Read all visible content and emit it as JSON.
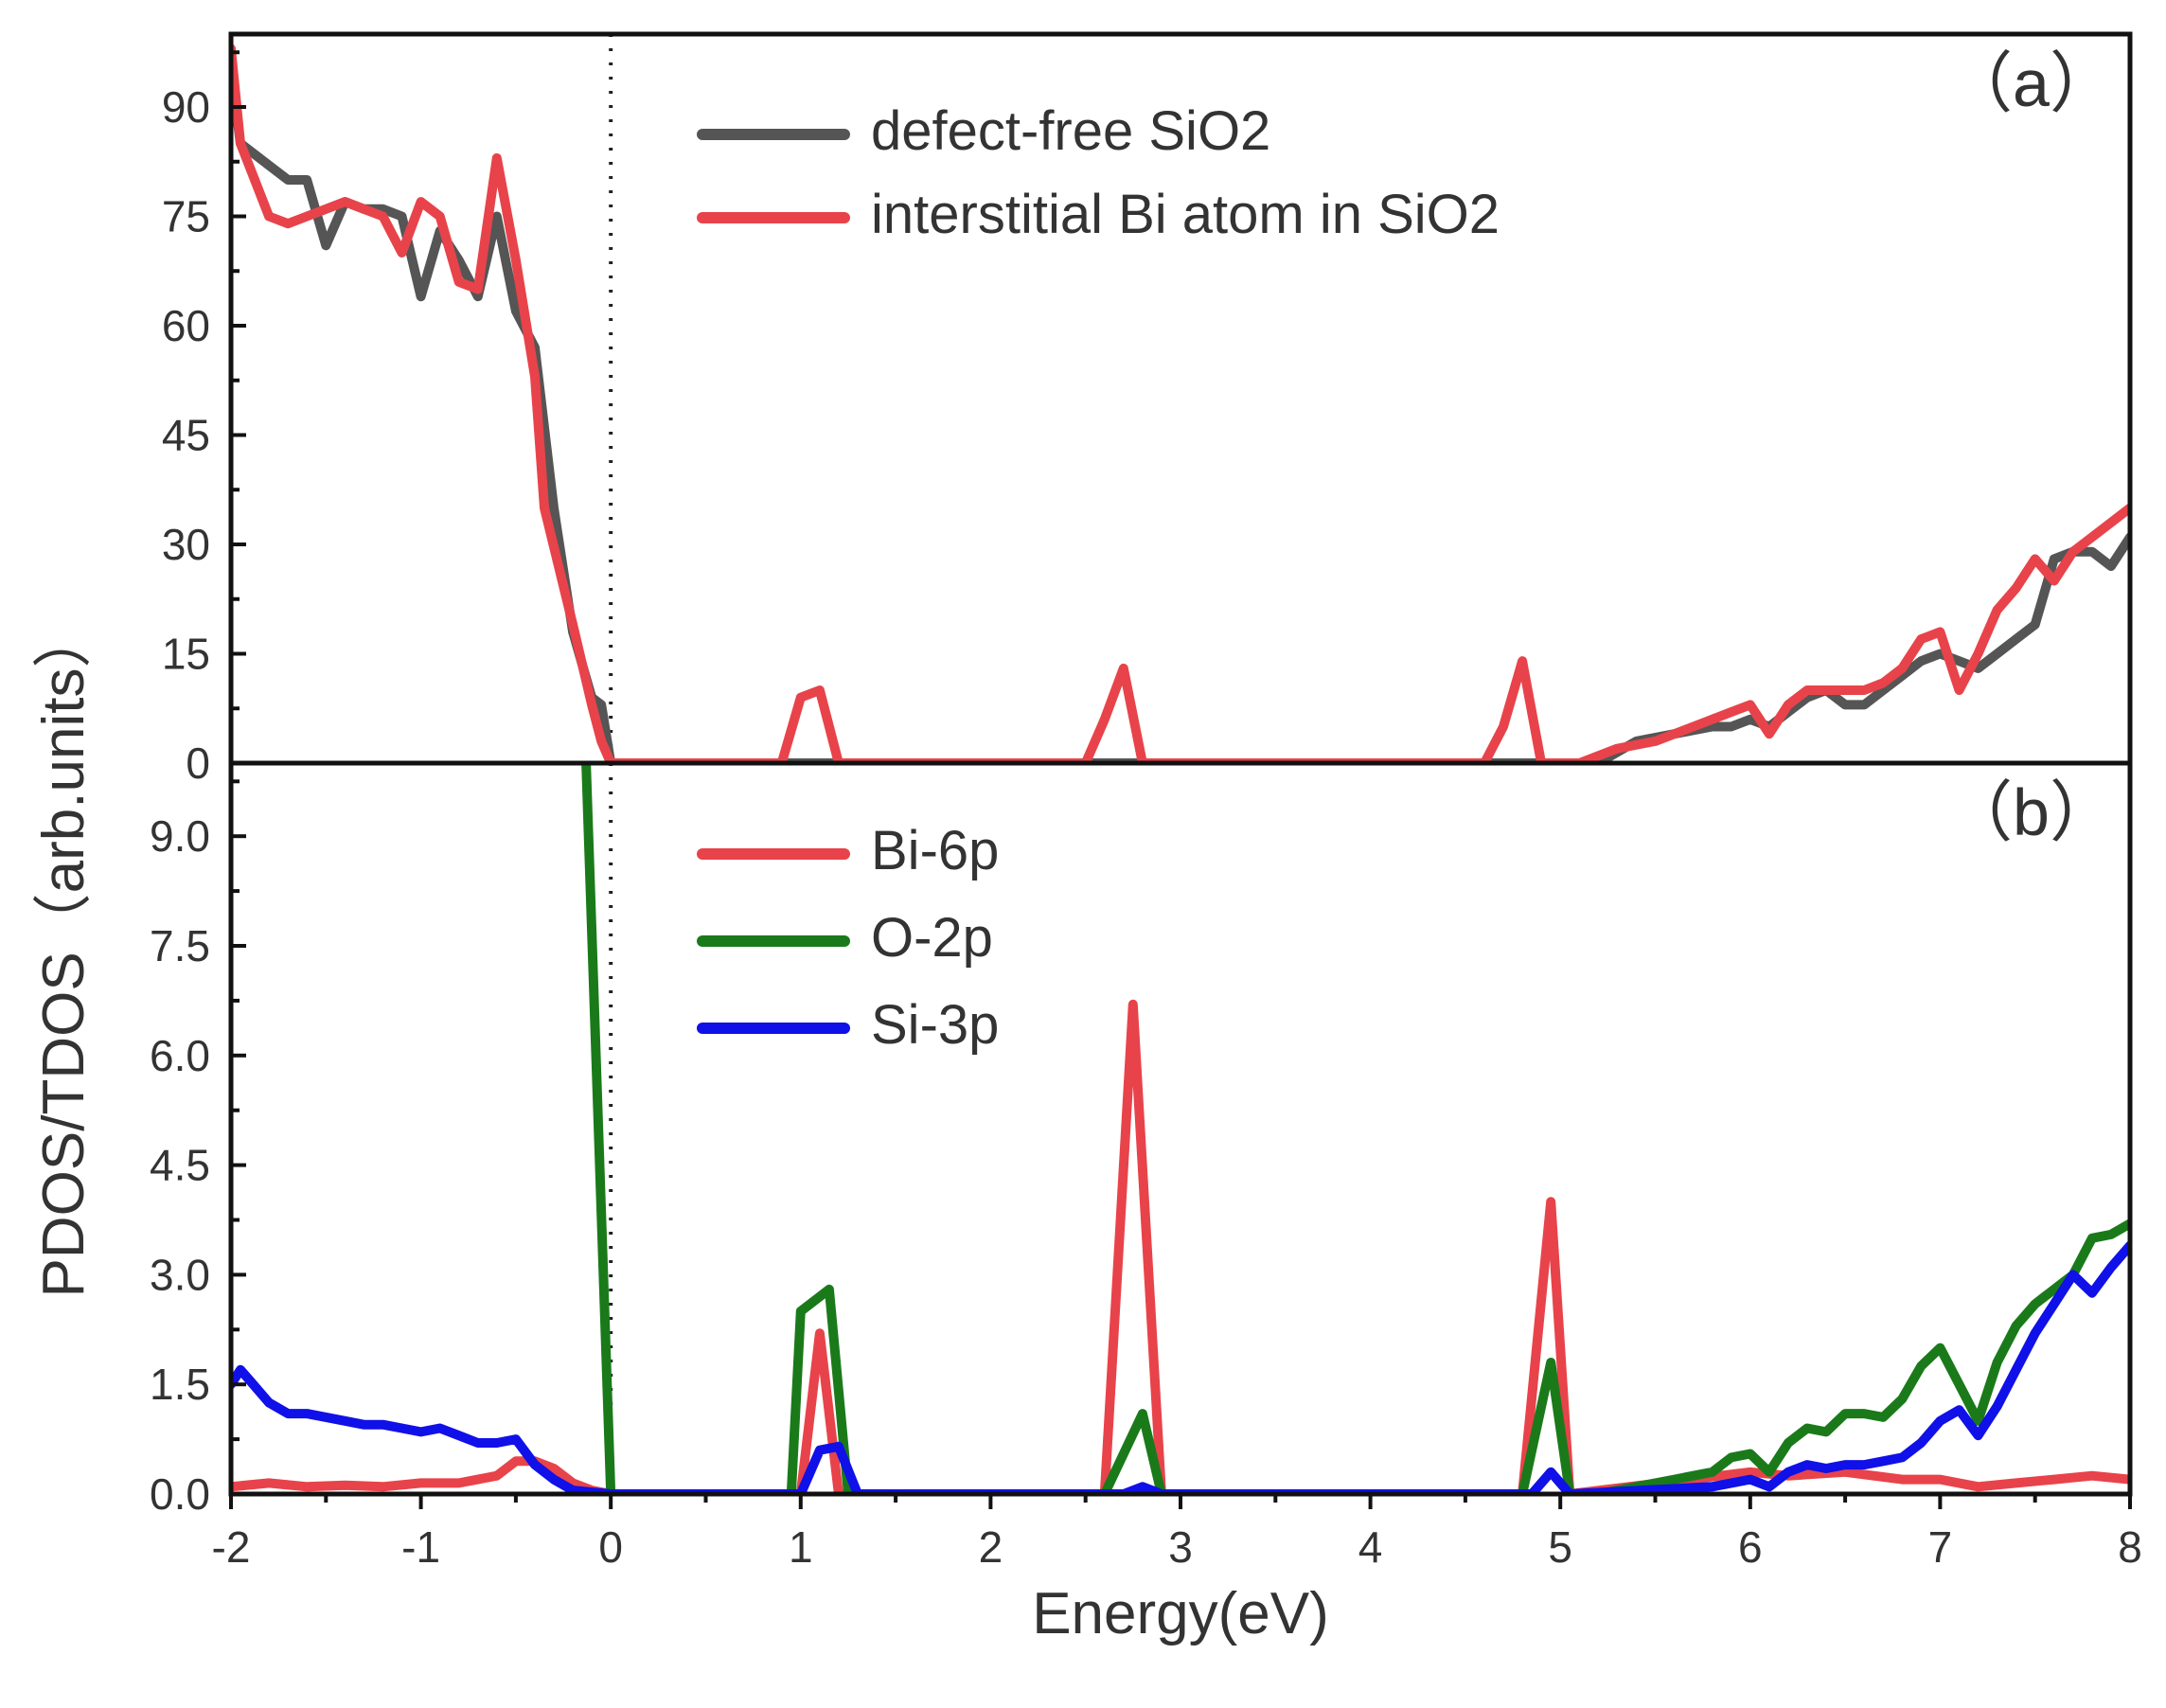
{
  "chart_data": [
    {
      "panel_label": "（a）",
      "type": "line",
      "ylim": [
        0,
        100
      ],
      "xlim": [
        -2,
        8
      ],
      "yticks": [
        "0",
        "15",
        "30",
        "45",
        "60",
        "75",
        "90"
      ],
      "ytick_values": [
        0,
        15,
        30,
        45,
        60,
        75,
        90
      ],
      "reference_line_x": 0,
      "legend_position": "top-center",
      "series": [
        {
          "name": "defect-free SiO2",
          "color": "#555555",
          "points": [
            [
              -2.0,
              95
            ],
            [
              -1.95,
              85
            ],
            [
              -1.8,
              82
            ],
            [
              -1.7,
              80
            ],
            [
              -1.6,
              80
            ],
            [
              -1.5,
              71
            ],
            [
              -1.4,
              77
            ],
            [
              -1.3,
              76
            ],
            [
              -1.2,
              76
            ],
            [
              -1.1,
              75
            ],
            [
              -1.0,
              64
            ],
            [
              -0.9,
              73
            ],
            [
              -0.8,
              69
            ],
            [
              -0.7,
              64
            ],
            [
              -0.6,
              75
            ],
            [
              -0.5,
              62
            ],
            [
              -0.4,
              57
            ],
            [
              -0.3,
              35
            ],
            [
              -0.2,
              18
            ],
            [
              -0.1,
              9
            ],
            [
              -0.05,
              8
            ],
            [
              0.0,
              0
            ],
            [
              2.6,
              0
            ],
            [
              5.2,
              0
            ],
            [
              5.4,
              3
            ],
            [
              5.6,
              4
            ],
            [
              5.8,
              5
            ],
            [
              5.9,
              5
            ],
            [
              6.0,
              6
            ],
            [
              6.1,
              5
            ],
            [
              6.2,
              7
            ],
            [
              6.3,
              9
            ],
            [
              6.4,
              10
            ],
            [
              6.5,
              8
            ],
            [
              6.6,
              8
            ],
            [
              6.7,
              10
            ],
            [
              6.8,
              12
            ],
            [
              6.9,
              14
            ],
            [
              7.0,
              15
            ],
            [
              7.1,
              14
            ],
            [
              7.2,
              13
            ],
            [
              7.3,
              15
            ],
            [
              7.4,
              17
            ],
            [
              7.5,
              19
            ],
            [
              7.6,
              28
            ],
            [
              7.7,
              29
            ],
            [
              7.8,
              29
            ],
            [
              7.9,
              27
            ],
            [
              8.0,
              31
            ]
          ]
        },
        {
          "name": "interstitial Bi atom in SiO2",
          "color": "#e8434a",
          "points": [
            [
              -2.0,
              98
            ],
            [
              -1.95,
              85
            ],
            [
              -1.8,
              75
            ],
            [
              -1.7,
              74
            ],
            [
              -1.6,
              75
            ],
            [
              -1.5,
              76
            ],
            [
              -1.4,
              77
            ],
            [
              -1.3,
              76
            ],
            [
              -1.2,
              75
            ],
            [
              -1.1,
              70
            ],
            [
              -1.0,
              77
            ],
            [
              -0.9,
              75
            ],
            [
              -0.8,
              66
            ],
            [
              -0.7,
              65
            ],
            [
              -0.6,
              83
            ],
            [
              -0.5,
              69
            ],
            [
              -0.4,
              53
            ],
            [
              -0.35,
              35
            ],
            [
              -0.2,
              19
            ],
            [
              -0.1,
              8
            ],
            [
              -0.05,
              3
            ],
            [
              0.0,
              0
            ],
            [
              0.9,
              0
            ],
            [
              1.0,
              9
            ],
            [
              1.1,
              10
            ],
            [
              1.2,
              0
            ],
            [
              2.5,
              0
            ],
            [
              2.6,
              6
            ],
            [
              2.7,
              13
            ],
            [
              2.8,
              0
            ],
            [
              4.6,
              0
            ],
            [
              4.7,
              5
            ],
            [
              4.8,
              14
            ],
            [
              4.9,
              0
            ],
            [
              5.1,
              0
            ],
            [
              5.3,
              2
            ],
            [
              5.5,
              3
            ],
            [
              5.7,
              5
            ],
            [
              5.9,
              7
            ],
            [
              6.0,
              8
            ],
            [
              6.1,
              4
            ],
            [
              6.2,
              8
            ],
            [
              6.3,
              10
            ],
            [
              6.4,
              10
            ],
            [
              6.5,
              10
            ],
            [
              6.6,
              10
            ],
            [
              6.7,
              11
            ],
            [
              6.8,
              13
            ],
            [
              6.9,
              17
            ],
            [
              7.0,
              18
            ],
            [
              7.1,
              10
            ],
            [
              7.2,
              15
            ],
            [
              7.3,
              21
            ],
            [
              7.4,
              24
            ],
            [
              7.5,
              28
            ],
            [
              7.6,
              25
            ],
            [
              7.7,
              29
            ],
            [
              7.8,
              31
            ],
            [
              7.9,
              33
            ],
            [
              8.0,
              35
            ]
          ]
        }
      ]
    },
    {
      "panel_label": "（b）",
      "type": "line",
      "ylim": [
        0,
        10
      ],
      "xlim": [
        -2,
        8
      ],
      "xticks": [
        "-2",
        "-1",
        "0",
        "1",
        "2",
        "3",
        "4",
        "5",
        "6",
        "7",
        "8"
      ],
      "xtick_values": [
        -2,
        -1,
        0,
        1,
        2,
        3,
        4,
        5,
        6,
        7,
        8
      ],
      "yticks": [
        "0.0",
        "1.5",
        "3.0",
        "4.5",
        "6.0",
        "7.5",
        "9.0"
      ],
      "ytick_values": [
        0,
        1.5,
        3,
        4.5,
        6,
        7.5,
        9
      ],
      "xlabel": "Energy(eV)",
      "reference_line_x": 0,
      "legend_position": "top-center",
      "series": [
        {
          "name": "Bi-6p",
          "color": "#e8434a",
          "points": [
            [
              -2.0,
              0.1
            ],
            [
              -1.8,
              0.15
            ],
            [
              -1.6,
              0.1
            ],
            [
              -1.4,
              0.12
            ],
            [
              -1.2,
              0.1
            ],
            [
              -1.0,
              0.15
            ],
            [
              -0.8,
              0.15
            ],
            [
              -0.6,
              0.25
            ],
            [
              -0.5,
              0.45
            ],
            [
              -0.4,
              0.45
            ],
            [
              -0.3,
              0.35
            ],
            [
              -0.2,
              0.15
            ],
            [
              -0.1,
              0.05
            ],
            [
              0.0,
              0
            ],
            [
              1.0,
              0
            ],
            [
              1.1,
              2.2
            ],
            [
              1.2,
              0
            ],
            [
              2.6,
              0
            ],
            [
              2.75,
              6.7
            ],
            [
              2.9,
              0
            ],
            [
              4.8,
              0
            ],
            [
              4.95,
              4.0
            ],
            [
              5.05,
              0
            ],
            [
              6.0,
              0.3
            ],
            [
              6.2,
              0.25
            ],
            [
              6.5,
              0.3
            ],
            [
              6.8,
              0.2
            ],
            [
              7.0,
              0.2
            ],
            [
              7.2,
              0.1
            ],
            [
              7.4,
              0.15
            ],
            [
              7.6,
              0.2
            ],
            [
              7.8,
              0.25
            ],
            [
              8.0,
              0.2
            ]
          ]
        },
        {
          "name": "O-2p",
          "color": "#1a7a1a",
          "points": [
            [
              -0.13,
              10
            ],
            [
              0.0,
              0
            ],
            [
              0.95,
              0
            ],
            [
              1.0,
              2.5
            ],
            [
              1.15,
              2.8
            ],
            [
              1.25,
              0
            ],
            [
              2.6,
              0
            ],
            [
              2.8,
              1.1
            ],
            [
              2.9,
              0
            ],
            [
              4.8,
              0
            ],
            [
              4.95,
              1.8
            ],
            [
              5.05,
              0
            ],
            [
              5.2,
              0
            ],
            [
              5.4,
              0.1
            ],
            [
              5.6,
              0.2
            ],
            [
              5.8,
              0.3
            ],
            [
              5.9,
              0.5
            ],
            [
              6.0,
              0.55
            ],
            [
              6.1,
              0.3
            ],
            [
              6.2,
              0.7
            ],
            [
              6.3,
              0.9
            ],
            [
              6.4,
              0.85
            ],
            [
              6.5,
              1.1
            ],
            [
              6.6,
              1.1
            ],
            [
              6.7,
              1.05
            ],
            [
              6.8,
              1.3
            ],
            [
              6.9,
              1.75
            ],
            [
              7.0,
              2.0
            ],
            [
              7.1,
              1.5
            ],
            [
              7.2,
              1.0
            ],
            [
              7.3,
              1.8
            ],
            [
              7.4,
              2.3
            ],
            [
              7.5,
              2.6
            ],
            [
              7.6,
              2.8
            ],
            [
              7.7,
              3.0
            ],
            [
              7.8,
              3.5
            ],
            [
              7.9,
              3.55
            ],
            [
              8.0,
              3.7
            ]
          ]
        },
        {
          "name": "Si-3p",
          "color": "#1010e8",
          "points": [
            [
              -2.0,
              1.5
            ],
            [
              -1.95,
              1.7
            ],
            [
              -1.9,
              1.55
            ],
            [
              -1.8,
              1.25
            ],
            [
              -1.7,
              1.1
            ],
            [
              -1.6,
              1.1
            ],
            [
              -1.5,
              1.05
            ],
            [
              -1.4,
              1.0
            ],
            [
              -1.3,
              0.95
            ],
            [
              -1.2,
              0.95
            ],
            [
              -1.1,
              0.9
            ],
            [
              -1.0,
              0.85
            ],
            [
              -0.9,
              0.9
            ],
            [
              -0.8,
              0.8
            ],
            [
              -0.7,
              0.7
            ],
            [
              -0.6,
              0.7
            ],
            [
              -0.5,
              0.75
            ],
            [
              -0.4,
              0.4
            ],
            [
              -0.3,
              0.2
            ],
            [
              -0.2,
              0.05
            ],
            [
              0.0,
              0
            ],
            [
              1.0,
              0
            ],
            [
              1.1,
              0.6
            ],
            [
              1.2,
              0.65
            ],
            [
              1.3,
              0
            ],
            [
              2.7,
              0
            ],
            [
              2.8,
              0.1
            ],
            [
              2.9,
              0
            ],
            [
              4.85,
              0
            ],
            [
              4.95,
              0.3
            ],
            [
              5.05,
              0
            ],
            [
              5.8,
              0.1
            ],
            [
              6.0,
              0.2
            ],
            [
              6.1,
              0.1
            ],
            [
              6.2,
              0.3
            ],
            [
              6.3,
              0.4
            ],
            [
              6.4,
              0.35
            ],
            [
              6.5,
              0.4
            ],
            [
              6.6,
              0.4
            ],
            [
              6.7,
              0.45
            ],
            [
              6.8,
              0.5
            ],
            [
              6.9,
              0.7
            ],
            [
              7.0,
              1.0
            ],
            [
              7.1,
              1.15
            ],
            [
              7.2,
              0.8
            ],
            [
              7.3,
              1.2
            ],
            [
              7.4,
              1.7
            ],
            [
              7.5,
              2.2
            ],
            [
              7.6,
              2.6
            ],
            [
              7.7,
              3.0
            ],
            [
              7.8,
              2.75
            ],
            [
              7.9,
              3.1
            ],
            [
              8.0,
              3.4
            ]
          ]
        }
      ]
    }
  ],
  "shared_ylabel": "PDOS/TDOS（arb.units）"
}
